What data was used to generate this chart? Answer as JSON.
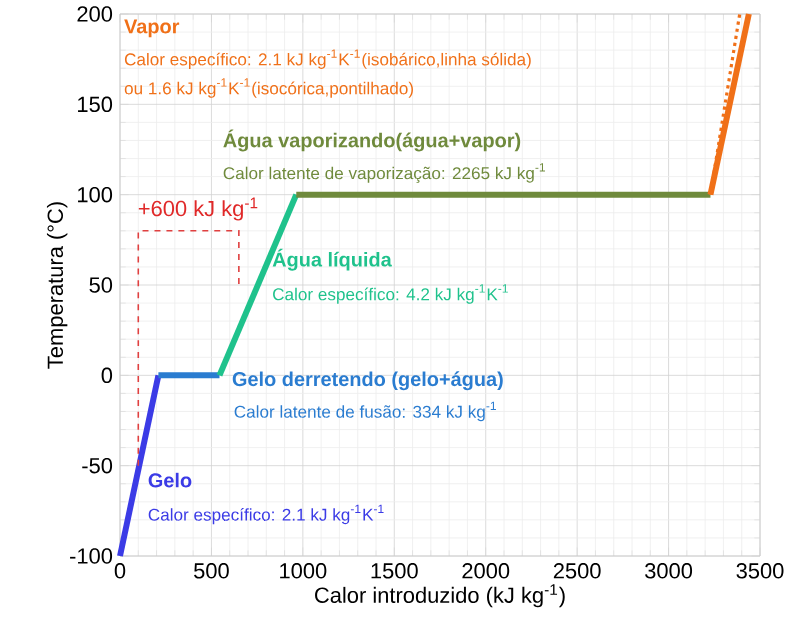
{
  "chart_data": {
    "type": "line",
    "xlabel": "Calor introduzido (kJ kg$^{-1}$)",
    "ylabel": "Temperatura (°C)",
    "xlim": [
      0,
      3500
    ],
    "ylim": [
      -100,
      200
    ],
    "xticks": [
      0,
      500,
      1000,
      1500,
      2000,
      2500,
      3000,
      3500
    ],
    "yticks": [
      -100,
      -50,
      0,
      50,
      100,
      150,
      200
    ],
    "grid": true,
    "marker": "none",
    "line_style": "solid",
    "series": [
      {
        "name": "Gelo",
        "color": "#3b3be6",
        "x": [
          0,
          210
        ],
        "values": [
          -100,
          0
        ]
      },
      {
        "name": "Gelo derretendo (gelo+água)",
        "color": "#2a7cd0",
        "x": [
          210,
          544
        ],
        "values": [
          0,
          0
        ]
      },
      {
        "name": "Água líquida",
        "color": "#1fc28c",
        "x": [
          544,
          964
        ],
        "values": [
          0,
          100
        ]
      },
      {
        "name": "Água vaporizando(água+vapor)",
        "color": "#6f8a3c",
        "x": [
          964,
          3229
        ],
        "values": [
          100,
          100
        ]
      },
      {
        "name": "Vapor",
        "color": "#f07018",
        "x": [
          3229,
          3439
        ],
        "values": [
          100,
          200
        ]
      },
      {
        "color": "#f07018",
        "line_style": "dotted",
        "x": [
          3229,
          3389
        ],
        "values": [
          100,
          200
        ]
      }
    ],
    "annotations": [
      "+600 kJ kg$^{-1}$",
      "Calor específico: 2.1 kJ kg$^{-1}$K$^{-1}$(isobárico,linha sólida)",
      "ou 1.6 kJ kg$^{-1}$K$^{-1}$(isocórica,pontilhado)",
      "Calor latente de vaporização: 2265 kJ kg$^{-1}$",
      "Calor específico: 4.2 kJ kg$^{-1}$K$^{-1}$",
      "Calor latente de fusão: 334 kJ kg$^{-1}$",
      "Calor específico: 2.1 kJ kg$^{-1}$K$^{-1}$"
    ]
  }
}
